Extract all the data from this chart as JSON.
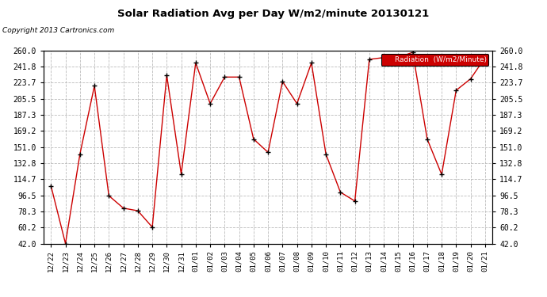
{
  "title": "Solar Radiation Avg per Day W/m2/minute 20130121",
  "copyright": "Copyright 2013 Cartronics.com",
  "legend_label": "Radiation  (W/m2/Minute)",
  "dates": [
    "12/22",
    "12/23",
    "12/24",
    "12/25",
    "12/26",
    "12/27",
    "12/28",
    "12/29",
    "12/30",
    "12/31",
    "01/01",
    "01/02",
    "01/03",
    "01/04",
    "01/05",
    "01/06",
    "01/07",
    "01/08",
    "01/09",
    "01/10",
    "01/11",
    "01/12",
    "01/13",
    "01/14",
    "01/15",
    "01/16",
    "01/17",
    "01/18",
    "01/19",
    "01/20",
    "01/21"
  ],
  "values": [
    107.0,
    42.0,
    143.0,
    220.0,
    96.0,
    82.0,
    79.0,
    60.5,
    232.0,
    120.5,
    246.0,
    200.0,
    230.0,
    230.0,
    160.0,
    145.0,
    225.0,
    200.0,
    246.0,
    143.0,
    100.0,
    90.0,
    250.0,
    252.0,
    252.0,
    258.0,
    160.0,
    120.0,
    215.0,
    228.0,
    252.0
  ],
  "ylim": [
    42.0,
    260.0
  ],
  "yticks": [
    42.0,
    60.2,
    78.3,
    96.5,
    114.7,
    132.8,
    151.0,
    169.2,
    187.3,
    205.5,
    223.7,
    241.8,
    260.0
  ],
  "line_color": "#cc0000",
  "marker_color": "black",
  "bg_color": "#ffffff",
  "grid_color": "#bbbbbb",
  "legend_bg": "#cc0000",
  "legend_text_color": "#ffffff",
  "figwidth": 6.9,
  "figheight": 3.75,
  "dpi": 100
}
